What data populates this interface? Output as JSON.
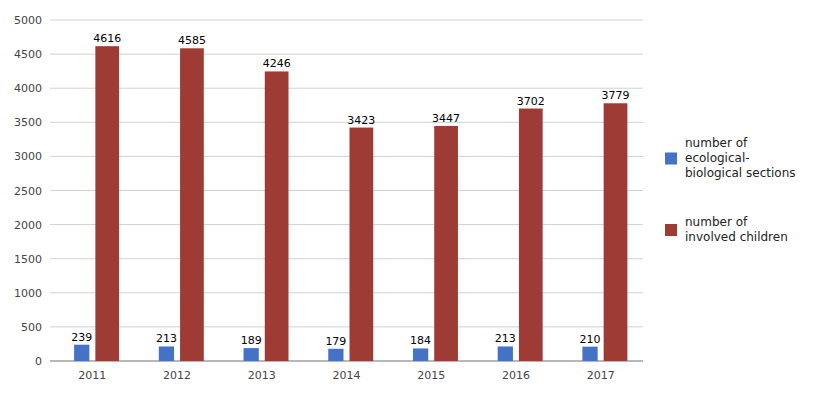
{
  "chart_data": {
    "type": "bar",
    "categories": [
      "2011",
      "2012",
      "2013",
      "2014",
      "2015",
      "2016",
      "2017"
    ],
    "series": [
      {
        "name": "number of\necological-\nbiological sections",
        "color": "#4472C4",
        "values": [
          239,
          213,
          189,
          179,
          184,
          213,
          210
        ]
      },
      {
        "name": "number of\ninvolved children",
        "color": "#9E3B35",
        "values": [
          4616,
          4585,
          4246,
          3423,
          3447,
          3702,
          3779
        ]
      }
    ],
    "ylim": [
      0,
      5000
    ],
    "yticks": [
      0,
      500,
      1000,
      1500,
      2000,
      2500,
      3000,
      3500,
      4000,
      4500,
      5000
    ],
    "grid": true,
    "legend": "right",
    "data_labels": true
  }
}
